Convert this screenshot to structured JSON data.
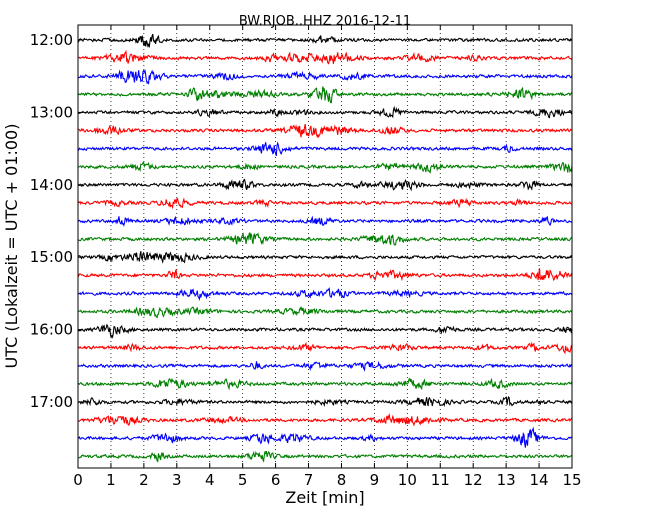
{
  "chart_data": {
    "type": "line",
    "title": "BW.RJOB..HHZ 2016-12-11",
    "xlabel": "Zeit  [min]",
    "ylabel": "UTC (Lokalzeit = UTC + 01:00)",
    "xlim": [
      0,
      15
    ],
    "x_ticks": [
      "0",
      "1",
      "2",
      "3",
      "4",
      "5",
      "6",
      "7",
      "8",
      "9",
      "10",
      "11",
      "12",
      "13",
      "14",
      "15"
    ],
    "y_ticks": [
      "12:00",
      "13:00",
      "14:00",
      "15:00",
      "16:00",
      "17:00"
    ],
    "trace_interval_minutes": 15,
    "trace_count": 24,
    "trace_start": "12:00",
    "trace_colors": [
      "#000000",
      "#ff0000",
      "#0000ff",
      "#008000"
    ],
    "grid": "vertical-dotted"
  }
}
